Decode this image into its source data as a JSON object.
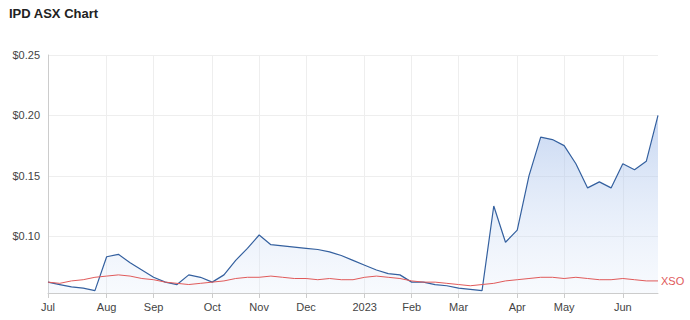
{
  "chart_data": {
    "type": "line",
    "title": "IPD ASX Chart",
    "categories": [
      "Jul",
      null,
      null,
      null,
      null,
      "Aug",
      null,
      null,
      null,
      "Sep",
      null,
      null,
      null,
      null,
      "Oct",
      null,
      null,
      null,
      "Nov",
      null,
      null,
      null,
      "Dec",
      null,
      null,
      null,
      null,
      "2023",
      null,
      null,
      null,
      "Feb",
      null,
      null,
      null,
      "Mar",
      null,
      null,
      null,
      null,
      "Apr",
      null,
      null,
      null,
      "May",
      null,
      null,
      null,
      null,
      "Jun",
      null,
      null,
      null
    ],
    "series": [
      {
        "type": "area",
        "color": "#34609f",
        "values": [
          0.062,
          0.06,
          0.058,
          0.057,
          0.055,
          0.083,
          0.085,
          0.078,
          0.072,
          0.066,
          0.062,
          0.06,
          0.068,
          0.066,
          0.062,
          0.068,
          0.08,
          0.09,
          0.101,
          0.093,
          0.092,
          0.091,
          0.09,
          0.089,
          0.087,
          0.084,
          0.08,
          0.076,
          0.072,
          0.069,
          0.068,
          0.062,
          0.062,
          0.06,
          0.059,
          0.057,
          0.056,
          0.055,
          0.125,
          0.095,
          0.105,
          0.15,
          0.182,
          0.18,
          0.175,
          0.16,
          0.14,
          0.145,
          0.14,
          0.16,
          0.155,
          0.162,
          0.2
        ]
      },
      {
        "name": "XSO",
        "type": "line",
        "color": "#e05a5a",
        "values": [
          0.062,
          0.061,
          0.063,
          0.064,
          0.066,
          0.067,
          0.068,
          0.067,
          0.065,
          0.064,
          0.062,
          0.061,
          0.06,
          0.061,
          0.062,
          0.063,
          0.065,
          0.066,
          0.066,
          0.067,
          0.066,
          0.065,
          0.065,
          0.064,
          0.065,
          0.064,
          0.064,
          0.066,
          0.067,
          0.066,
          0.065,
          0.063,
          0.062,
          0.062,
          0.061,
          0.06,
          0.059,
          0.06,
          0.061,
          0.063,
          0.064,
          0.065,
          0.066,
          0.066,
          0.065,
          0.066,
          0.065,
          0.064,
          0.064,
          0.065,
          0.064,
          0.063,
          0.063
        ]
      }
    ],
    "ylim": [
      0.053,
      0.25
    ],
    "yticks": [
      {
        "value": 0.1,
        "label": "$0.10"
      },
      {
        "value": 0.15,
        "label": "$0.15"
      },
      {
        "value": 0.2,
        "label": "$0.20"
      },
      {
        "value": 0.25,
        "label": "$0.25"
      }
    ],
    "grid": true
  }
}
